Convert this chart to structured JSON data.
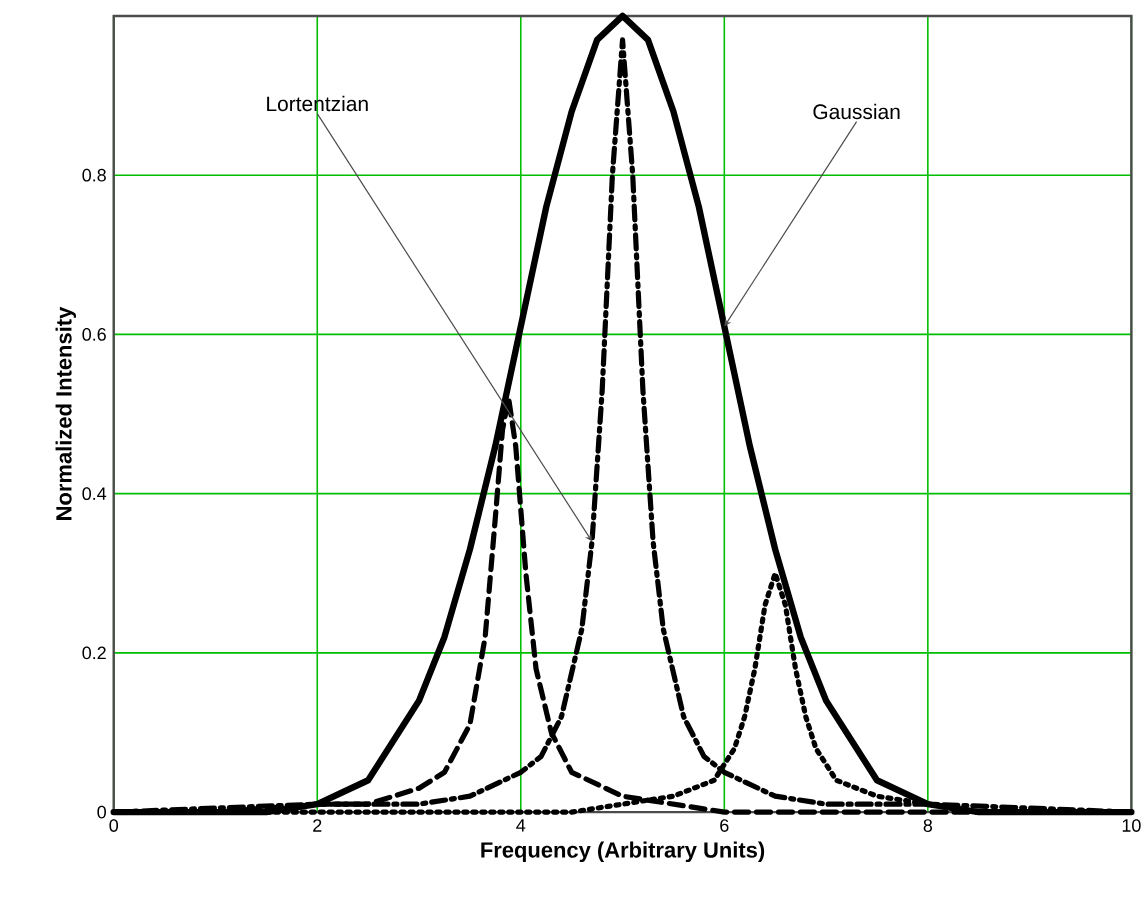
{
  "chart_data": {
    "type": "line",
    "xlabel": "Frequency (Arbitrary Units)",
    "ylabel": "Normalized Intensity",
    "xlim": [
      0,
      10
    ],
    "ylim": [
      0,
      1
    ],
    "xticks": [
      0,
      2,
      4,
      6,
      8,
      10
    ],
    "yticks": [
      0,
      {
        "value": 0.2,
        "label": "0.2"
      },
      {
        "value": 0.4,
        "label": "0.4"
      },
      {
        "value": 0.6,
        "label": "0.6"
      },
      {
        "value": 0.8,
        "label": "0.8"
      },
      {
        "value": 1,
        "label": null
      }
    ],
    "grid": true,
    "series": [
      {
        "color": "#000000",
        "line_style": "solid",
        "x": [
          0,
          1,
          1.5,
          2,
          2.5,
          3,
          3.25,
          3.5,
          3.75,
          4,
          4.25,
          4.5,
          4.75,
          5,
          5.25,
          5.5,
          5.75,
          6,
          6.25,
          6.5,
          6.75,
          7,
          7.5,
          8,
          8.5,
          9,
          10
        ],
        "values": [
          0,
          0,
          0,
          0.01,
          0.04,
          0.14,
          0.22,
          0.33,
          0.46,
          0.61,
          0.76,
          0.88,
          0.97,
          1,
          0.97,
          0.88,
          0.76,
          0.61,
          0.46,
          0.33,
          0.22,
          0.14,
          0.04,
          0.01,
          0,
          0,
          0
        ]
      },
      {
        "color": "#000000",
        "line_style": "dashed",
        "x": [
          0,
          1,
          2,
          2.5,
          3,
          3.25,
          3.5,
          3.65,
          3.75,
          3.82,
          3.88,
          3.95,
          4.05,
          4.15,
          4.3,
          4.5,
          5,
          6,
          7,
          8,
          10
        ],
        "values": [
          0,
          0,
          0.01,
          0.01,
          0.03,
          0.05,
          0.11,
          0.22,
          0.37,
          0.48,
          0.52,
          0.46,
          0.3,
          0.18,
          0.1,
          0.05,
          0.02,
          0,
          0,
          0,
          0
        ]
      },
      {
        "color": "#000000",
        "line_style": "dashdot",
        "x": [
          0,
          2,
          3,
          3.5,
          4,
          4.2,
          4.4,
          4.6,
          4.7,
          4.8,
          4.9,
          5,
          5.1,
          5.2,
          5.3,
          5.4,
          5.6,
          5.8,
          6,
          6.5,
          7,
          8,
          10
        ],
        "values": [
          0,
          0.01,
          0.01,
          0.02,
          0.05,
          0.07,
          0.12,
          0.23,
          0.34,
          0.53,
          0.8,
          0.97,
          0.8,
          0.53,
          0.34,
          0.23,
          0.12,
          0.07,
          0.05,
          0.02,
          0.01,
          0.01,
          0
        ]
      },
      {
        "color": "#000000",
        "line_style": "dotted",
        "x": [
          0,
          3,
          4.5,
          5,
          5.5,
          5.9,
          6.1,
          6.2,
          6.3,
          6.4,
          6.5,
          6.6,
          6.7,
          6.8,
          6.9,
          7.1,
          7.5,
          8,
          8.5,
          9.5,
          10
        ],
        "values": [
          0,
          0,
          0,
          0.01,
          0.02,
          0.04,
          0.08,
          0.12,
          0.18,
          0.26,
          0.3,
          0.26,
          0.18,
          0.12,
          0.08,
          0.04,
          0.02,
          0.01,
          0,
          0,
          0
        ]
      }
    ],
    "annotations": [
      {
        "text": "Lortentzian",
        "x": 4.7,
        "y": 0.34
      },
      {
        "text": "Gaussian",
        "x": 6,
        "y": 0.61
      }
    ]
  }
}
